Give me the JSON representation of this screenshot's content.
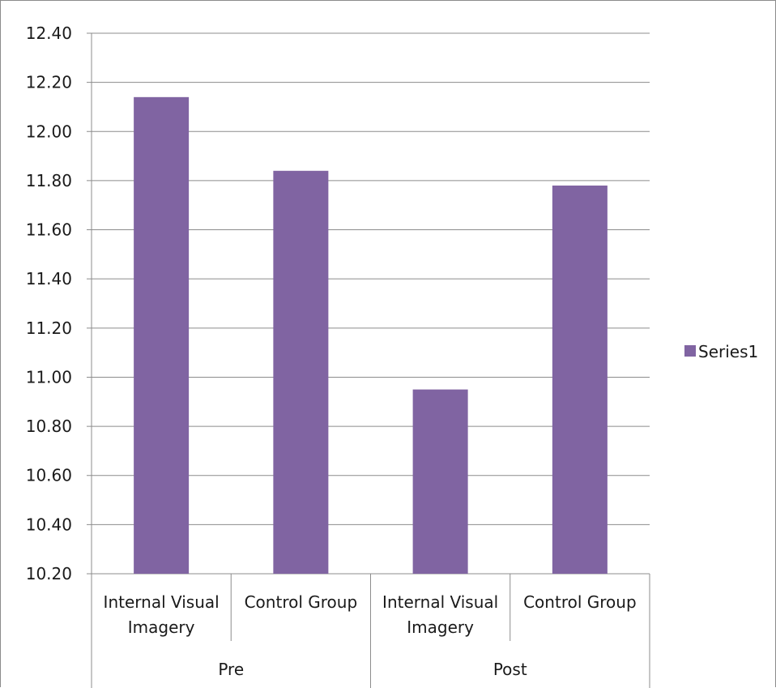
{
  "chart_data": {
    "type": "bar",
    "title": "",
    "xlabel": "",
    "ylabel": "",
    "categories": [
      {
        "label_lines": [
          "Internal Visual",
          "Imagery"
        ],
        "group": "Pre"
      },
      {
        "label_lines": [
          "Control Group"
        ],
        "group": "Pre"
      },
      {
        "label_lines": [
          "Internal Visual",
          "Imagery"
        ],
        "group": "Post"
      },
      {
        "label_lines": [
          "Control Group"
        ],
        "group": "Post"
      }
    ],
    "groups": [
      "Pre",
      "Post"
    ],
    "series": [
      {
        "name": "Series1",
        "values": [
          12.14,
          11.84,
          10.95,
          11.78
        ],
        "color": "#8064a2"
      }
    ],
    "ylim": [
      10.2,
      12.4
    ],
    "y_ticks": [
      "10.20",
      "10.40",
      "10.60",
      "10.80",
      "11.00",
      "11.20",
      "11.40",
      "11.60",
      "11.80",
      "12.00",
      "12.20",
      "12.40"
    ],
    "grid": true,
    "legend_position": "right"
  }
}
